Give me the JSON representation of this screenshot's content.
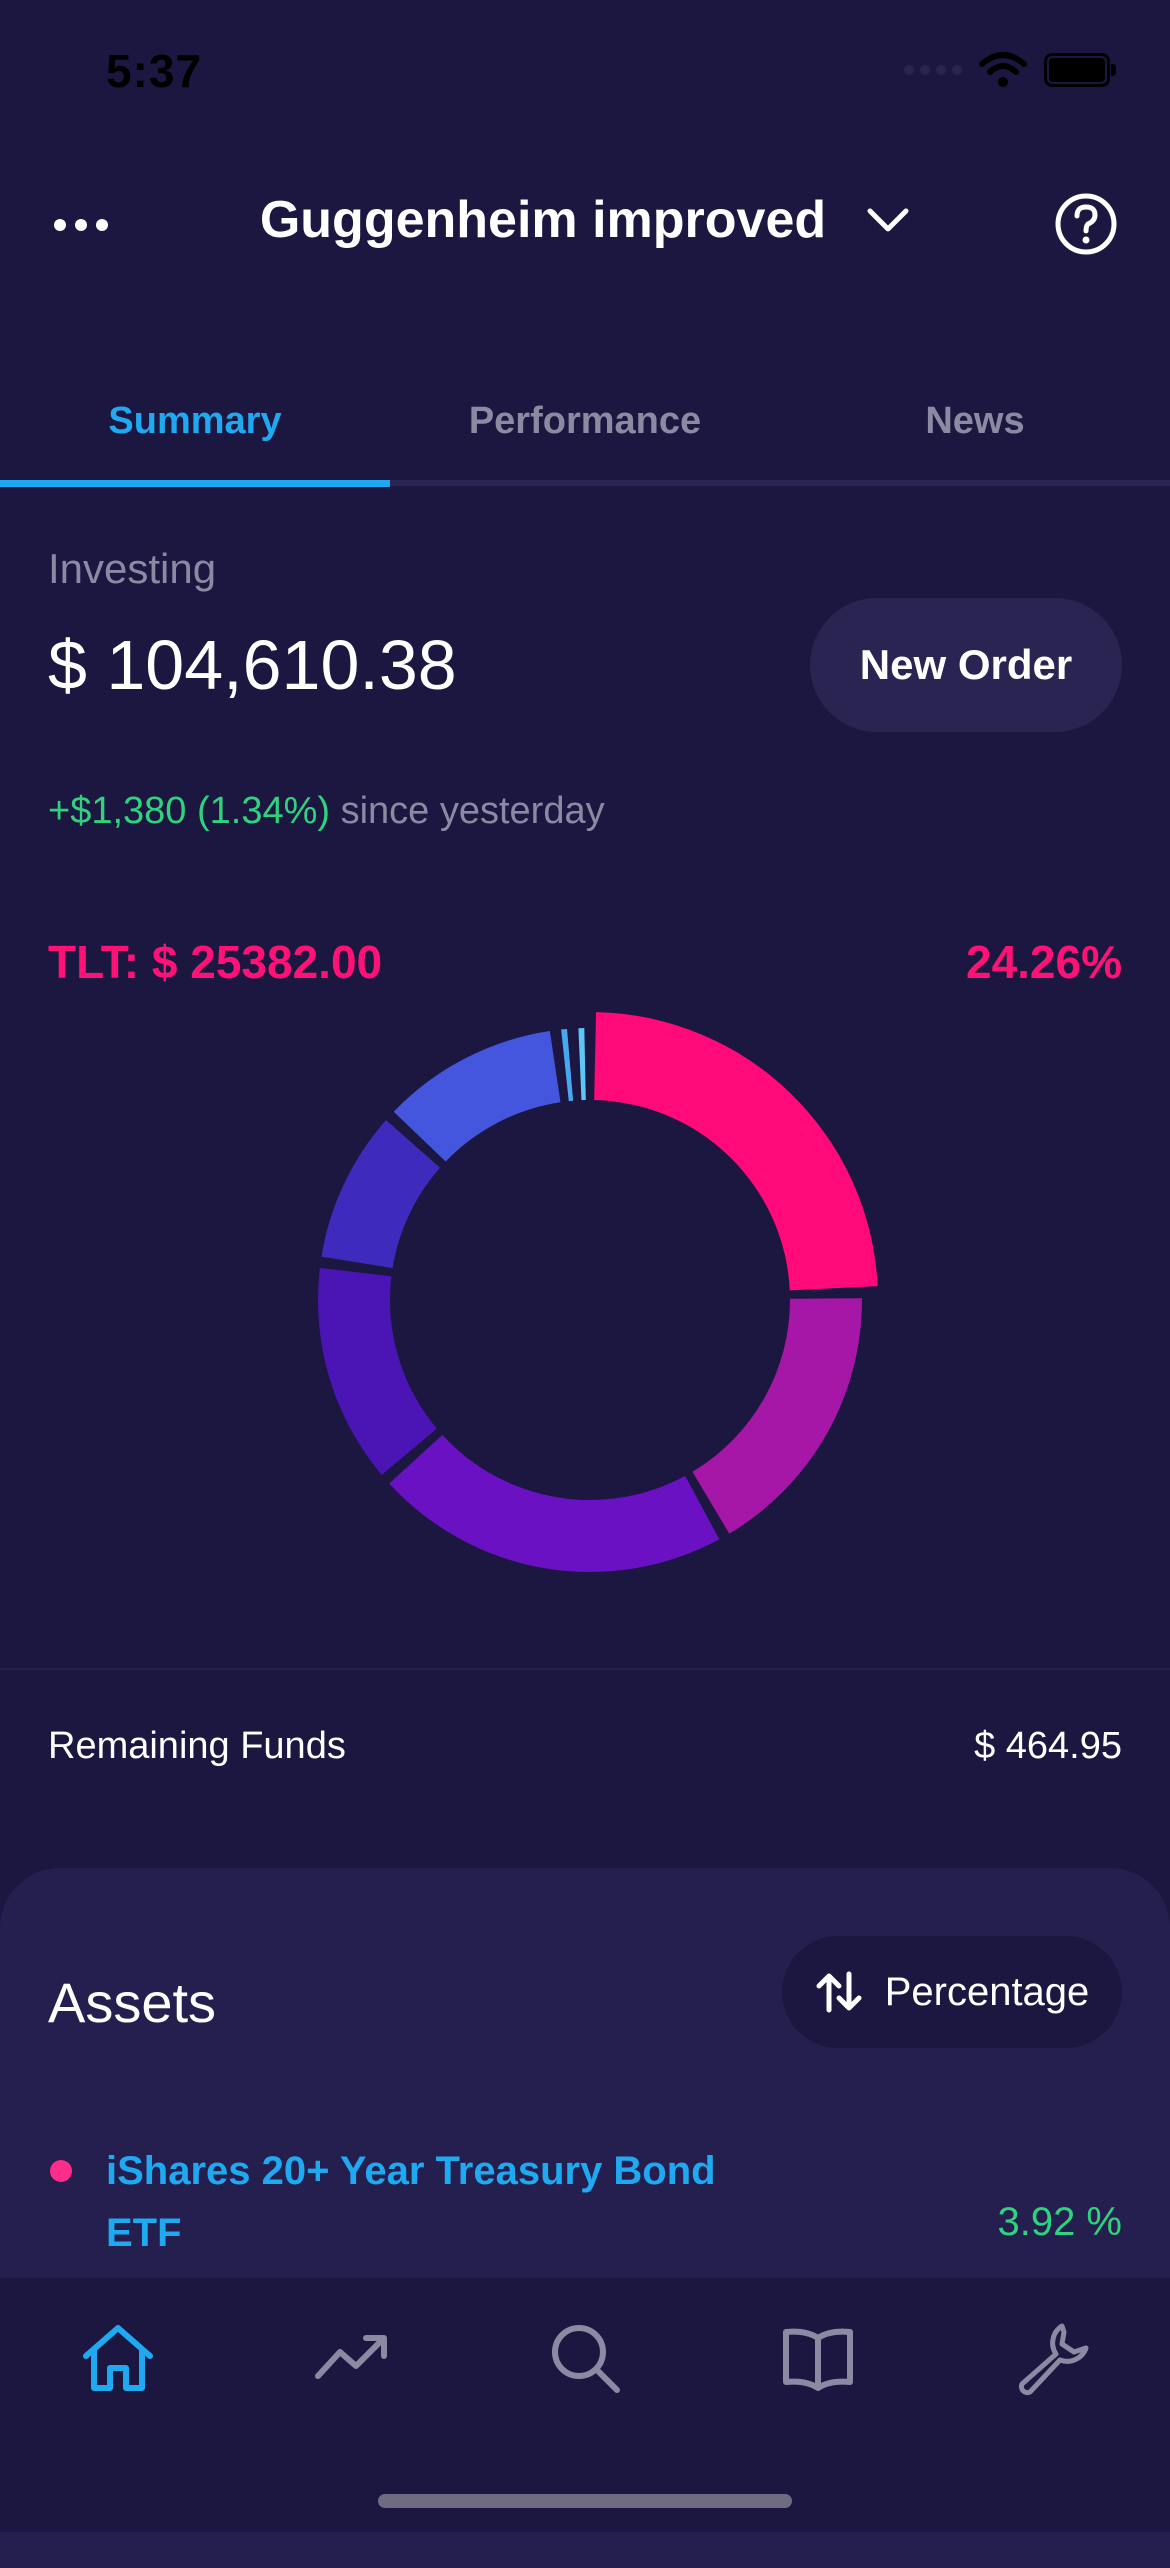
{
  "status_bar": {
    "time": "5:37"
  },
  "header": {
    "title": "Guggenheim improved"
  },
  "tabs": [
    {
      "label": "Summary",
      "active": true
    },
    {
      "label": "Performance",
      "active": false
    },
    {
      "label": "News",
      "active": false
    }
  ],
  "summary": {
    "investing_label": "Investing",
    "investing_value": "$ 104,610.38",
    "new_order_label": "New Order",
    "change_value": "+$1,380 (1.34%)",
    "change_suffix": " since yesterday",
    "selected_label": "TLT: $ 25382.00",
    "selected_percent": "24.26%"
  },
  "chart_data": {
    "type": "pie",
    "variant": "donut",
    "values": [
      24.26,
      17.0,
      21.5,
      13.5,
      9.5,
      11.0,
      1.0,
      1.0
    ],
    "colors": [
      "#ff0a78",
      "#a617a8",
      "#6a11c4",
      "#4b15b5",
      "#3e2bbd",
      "#4456de",
      "#47a8f0",
      "#5ec6f5"
    ],
    "highlighted_index": 0
  },
  "remaining": {
    "label": "Remaining Funds",
    "value": "$ 464.95"
  },
  "assets": {
    "title": "Assets",
    "sort_label": "Percentage",
    "items": [
      {
        "name": "iShares 20+ Year Treasury Bond ETF",
        "percent": "3.92 %",
        "dot_color": "#ff2d8a"
      }
    ]
  },
  "tab_bar": {
    "items": [
      {
        "icon": "home-icon",
        "active": true
      },
      {
        "icon": "trending-icon",
        "active": false
      },
      {
        "icon": "search-icon",
        "active": false
      },
      {
        "icon": "book-icon",
        "active": false
      },
      {
        "icon": "wrench-icon",
        "active": false
      }
    ],
    "active_color": "#1fa9f0",
    "inactive_color": "#8c8aa3"
  }
}
